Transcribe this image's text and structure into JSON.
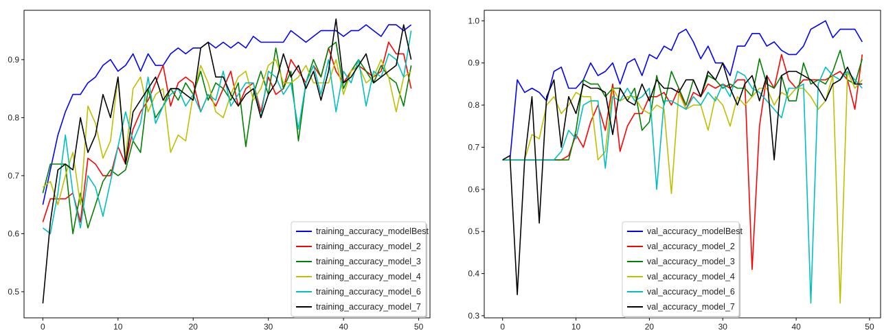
{
  "chart_data": [
    {
      "type": "line",
      "title": "",
      "xlabel": "",
      "ylabel": "",
      "xlim": [
        -2.5,
        51.5
      ],
      "ylim": [
        0.455,
        0.985
      ],
      "xticks": [
        0,
        10,
        20,
        30,
        40,
        50
      ],
      "yticks": [
        0.5,
        0.6,
        0.7,
        0.8,
        0.9
      ],
      "tick_labels_x": [
        "0",
        "10",
        "20",
        "30",
        "40",
        "50"
      ],
      "tick_labels_y": [
        "0.5",
        "0.6",
        "0.7",
        "0.8",
        "0.9"
      ],
      "grid": false,
      "legend_position": "lower right",
      "series": [
        {
          "name": "training_accuracy_modelBest",
          "color": "#0000ff",
          "values": [
            0.65,
            0.71,
            0.77,
            0.81,
            0.84,
            0.84,
            0.86,
            0.87,
            0.89,
            0.9,
            0.88,
            0.89,
            0.91,
            0.88,
            0.91,
            0.89,
            0.89,
            0.91,
            0.92,
            0.91,
            0.92,
            0.92,
            0.93,
            0.92,
            0.93,
            0.92,
            0.93,
            0.92,
            0.94,
            0.93,
            0.93,
            0.93,
            0.93,
            0.95,
            0.94,
            0.93,
            0.94,
            0.95,
            0.95,
            0.95,
            0.94,
            0.95,
            0.95,
            0.96,
            0.95,
            0.94,
            0.96,
            0.96,
            0.95,
            0.96
          ]
        },
        {
          "name": "training_accuracy_model_2",
          "color": "#ff0000",
          "values": [
            0.62,
            0.66,
            0.66,
            0.66,
            0.67,
            0.62,
            0.73,
            0.72,
            0.7,
            0.7,
            0.75,
            0.72,
            0.78,
            0.81,
            0.83,
            0.86,
            0.89,
            0.82,
            0.86,
            0.87,
            0.86,
            0.81,
            0.84,
            0.82,
            0.85,
            0.88,
            0.82,
            0.85,
            0.86,
            0.81,
            0.87,
            0.84,
            0.85,
            0.9,
            0.88,
            0.86,
            0.89,
            0.87,
            0.92,
            0.88,
            0.86,
            0.88,
            0.89,
            0.88,
            0.87,
            0.88,
            0.93,
            0.91,
            0.91,
            0.85
          ]
        },
        {
          "name": "training_accuracy_model_3",
          "color": "#008000",
          "values": [
            0.67,
            0.72,
            0.72,
            0.72,
            0.6,
            0.67,
            0.61,
            0.65,
            0.69,
            0.71,
            0.7,
            0.71,
            0.76,
            0.74,
            0.85,
            0.8,
            0.82,
            0.85,
            0.83,
            0.86,
            0.84,
            0.88,
            0.83,
            0.86,
            0.85,
            0.83,
            0.86,
            0.75,
            0.84,
            0.88,
            0.84,
            0.92,
            0.85,
            0.88,
            0.76,
            0.86,
            0.9,
            0.87,
            0.92,
            0.93,
            0.85,
            0.88,
            0.9,
            0.88,
            0.86,
            0.89,
            0.87,
            0.86,
            0.82,
            0.89
          ]
        },
        {
          "name": "training_accuracy_model_4",
          "color": "#bfbf00",
          "values": [
            0.68,
            0.69,
            0.65,
            0.7,
            0.74,
            0.65,
            0.82,
            0.79,
            0.73,
            0.76,
            0.87,
            0.73,
            0.85,
            0.87,
            0.81,
            0.84,
            0.85,
            0.74,
            0.77,
            0.76,
            0.84,
            0.89,
            0.86,
            0.81,
            0.8,
            0.84,
            0.87,
            0.88,
            0.83,
            0.85,
            0.89,
            0.9,
            0.86,
            0.86,
            0.87,
            0.89,
            0.86,
            0.86,
            0.86,
            0.9,
            0.84,
            0.88,
            0.89,
            0.86,
            0.87,
            0.9,
            0.87,
            0.81,
            0.87,
            0.88
          ]
        },
        {
          "name": "training_accuracy_model_6",
          "color": "#00bfbf",
          "values": [
            0.61,
            0.6,
            0.67,
            0.77,
            0.67,
            0.61,
            0.7,
            0.68,
            0.63,
            0.69,
            0.75,
            0.81,
            0.76,
            0.79,
            0.87,
            0.79,
            0.82,
            0.84,
            0.85,
            0.82,
            0.84,
            0.81,
            0.84,
            0.83,
            0.88,
            0.82,
            0.84,
            0.86,
            0.86,
            0.8,
            0.88,
            0.87,
            0.84,
            0.86,
            0.78,
            0.86,
            0.89,
            0.84,
            0.9,
            0.81,
            0.88,
            0.86,
            0.9,
            0.82,
            0.88,
            0.87,
            0.91,
            0.9,
            0.87,
            0.95
          ]
        },
        {
          "name": "training_accuracy_model_7",
          "color": "#000000",
          "values": [
            0.48,
            0.62,
            0.71,
            0.72,
            0.71,
            0.8,
            0.74,
            0.77,
            0.84,
            0.8,
            0.87,
            0.72,
            0.81,
            0.83,
            0.85,
            0.87,
            0.83,
            0.85,
            0.85,
            0.84,
            0.83,
            0.92,
            0.93,
            0.87,
            0.87,
            0.84,
            0.82,
            0.84,
            0.85,
            0.8,
            0.84,
            0.86,
            0.91,
            0.87,
            0.89,
            0.85,
            0.88,
            0.83,
            0.88,
            0.97,
            0.86,
            0.87,
            0.89,
            0.91,
            0.86,
            0.87,
            0.88,
            0.89,
            0.96,
            0.9
          ]
        }
      ]
    },
    {
      "type": "line",
      "title": "",
      "xlabel": "",
      "ylabel": "",
      "xlim": [
        -2.5,
        51.5
      ],
      "ylim": [
        0.295,
        1.025
      ],
      "xticks": [
        0,
        10,
        20,
        30,
        40,
        50
      ],
      "yticks": [
        0.3,
        0.4,
        0.5,
        0.6,
        0.7,
        0.8,
        0.9,
        1.0
      ],
      "tick_labels_x": [
        "0",
        "10",
        "20",
        "30",
        "40",
        "50"
      ],
      "tick_labels_y": [
        "0.3",
        "0.4",
        "0.5",
        "0.6",
        "0.7",
        "0.8",
        "0.9",
        "1.0"
      ],
      "grid": false,
      "legend_position": "lower center",
      "series": [
        {
          "name": "val_accuracy_modelBest",
          "color": "#0000ff",
          "values": [
            0.67,
            0.67,
            0.86,
            0.83,
            0.84,
            0.83,
            0.81,
            0.88,
            0.89,
            0.84,
            0.84,
            0.86,
            0.9,
            0.87,
            0.88,
            0.9,
            0.85,
            0.9,
            0.91,
            0.87,
            0.92,
            0.91,
            0.94,
            0.93,
            0.97,
            0.98,
            0.95,
            0.91,
            0.94,
            0.9,
            0.9,
            0.87,
            0.94,
            0.94,
            0.97,
            0.97,
            0.94,
            0.95,
            0.93,
            0.92,
            0.92,
            0.94,
            0.98,
            0.99,
            1.0,
            0.96,
            0.98,
            0.98,
            0.98,
            0.95
          ]
        },
        {
          "name": "val_accuracy_model_2",
          "color": "#ff0000",
          "values": [
            0.67,
            0.67,
            0.67,
            0.67,
            0.67,
            0.67,
            0.67,
            0.67,
            0.67,
            0.68,
            0.73,
            0.7,
            0.76,
            0.8,
            0.74,
            0.85,
            0.69,
            0.75,
            0.78,
            0.78,
            0.82,
            0.82,
            0.83,
            0.8,
            0.84,
            0.79,
            0.83,
            0.82,
            0.85,
            0.84,
            0.85,
            0.84,
            0.86,
            0.86,
            0.41,
            0.75,
            0.87,
            0.84,
            0.92,
            0.86,
            0.84,
            0.86,
            0.86,
            0.86,
            0.86,
            0.87,
            0.88,
            0.86,
            0.79,
            0.92
          ]
        },
        {
          "name": "val_accuracy_model_3",
          "color": "#008000",
          "values": [
            0.67,
            0.67,
            0.67,
            0.67,
            0.67,
            0.67,
            0.67,
            0.67,
            0.67,
            0.67,
            0.74,
            0.86,
            0.85,
            0.85,
            0.82,
            0.84,
            0.84,
            0.81,
            0.84,
            0.74,
            0.76,
            0.87,
            0.8,
            0.88,
            0.84,
            0.8,
            0.86,
            0.82,
            0.87,
            0.86,
            0.84,
            0.85,
            0.84,
            0.84,
            0.82,
            0.91,
            0.85,
            0.84,
            0.87,
            0.81,
            0.81,
            0.9,
            0.85,
            0.86,
            0.85,
            0.88,
            0.93,
            0.86,
            0.85,
            0.91
          ]
        },
        {
          "name": "val_accuracy_model_4",
          "color": "#bfbf00",
          "values": [
            0.67,
            0.67,
            0.67,
            0.67,
            0.73,
            0.72,
            0.8,
            0.82,
            0.78,
            0.8,
            0.83,
            0.82,
            0.82,
            0.67,
            0.69,
            0.84,
            0.81,
            0.82,
            0.82,
            0.79,
            0.78,
            0.8,
            0.79,
            0.59,
            0.83,
            0.79,
            0.8,
            0.8,
            0.74,
            0.82,
            0.8,
            0.75,
            0.82,
            0.8,
            0.82,
            0.84,
            0.84,
            0.8,
            0.83,
            0.82,
            0.84,
            0.84,
            0.82,
            0.79,
            0.81,
            0.87,
            0.33,
            0.88,
            0.84,
            0.86
          ]
        },
        {
          "name": "val_accuracy_model_6",
          "color": "#00bfbf",
          "values": [
            0.67,
            0.67,
            0.67,
            0.67,
            0.67,
            0.67,
            0.67,
            0.67,
            0.69,
            0.74,
            0.72,
            0.8,
            0.81,
            0.81,
            0.65,
            0.82,
            0.81,
            0.84,
            0.81,
            0.82,
            0.84,
            0.6,
            0.81,
            0.81,
            0.8,
            0.79,
            0.82,
            0.8,
            0.83,
            0.81,
            0.85,
            0.82,
            0.88,
            0.87,
            0.84,
            0.83,
            0.81,
            0.79,
            0.77,
            0.84,
            0.84,
            0.85,
            0.33,
            0.85,
            0.89,
            0.87,
            0.86,
            0.88,
            0.86,
            0.84
          ]
        },
        {
          "name": "val_accuracy_model_7",
          "color": "#000000",
          "values": [
            0.67,
            0.68,
            0.35,
            0.67,
            0.82,
            0.52,
            0.82,
            0.86,
            0.7,
            0.82,
            0.78,
            0.85,
            0.84,
            0.84,
            0.83,
            0.73,
            0.84,
            0.81,
            0.8,
            0.85,
            0.81,
            0.86,
            0.84,
            0.84,
            0.83,
            0.86,
            0.86,
            0.82,
            0.88,
            0.86,
            0.9,
            0.84,
            0.8,
            0.85,
            0.87,
            0.81,
            0.87,
            0.67,
            0.87,
            0.88,
            0.88,
            0.87,
            0.86,
            0.84,
            0.81,
            0.85,
            0.86,
            0.89,
            0.85,
            0.85
          ]
        }
      ]
    }
  ]
}
